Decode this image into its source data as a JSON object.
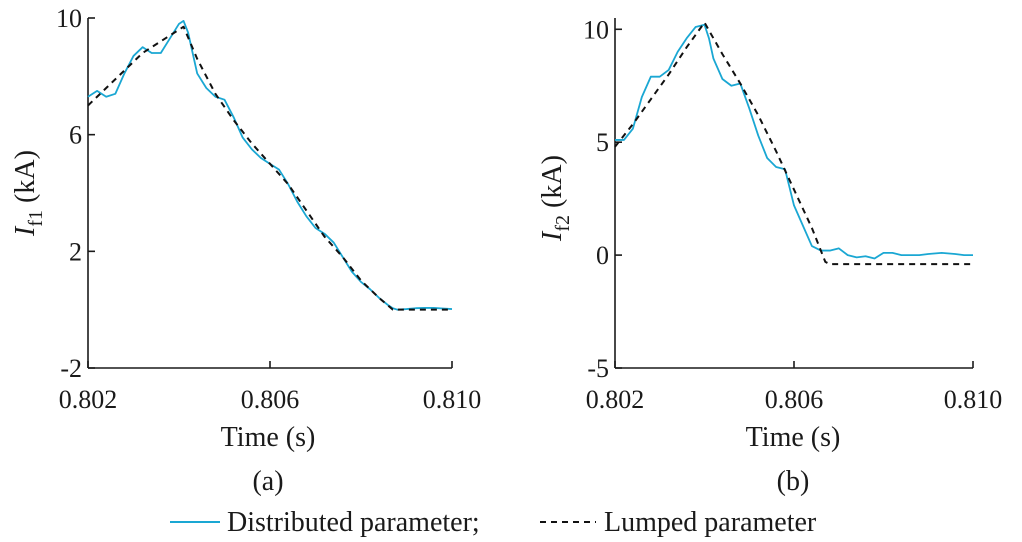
{
  "colors": {
    "distributed": "#1aa7d3",
    "lumped": "#111111",
    "axis": "#1a1a1a"
  },
  "legend": [
    {
      "label": "Distributed parameter;",
      "style": "solid"
    },
    {
      "label": "Lumped parameter",
      "style": "dashed"
    }
  ],
  "chart_data": [
    {
      "type": "line",
      "panel_label": "(a)",
      "xlabel": "Time (s)",
      "ylabel_symbol": "I",
      "ylabel_subscript": "f1",
      "ylabel_unit": " (kA)",
      "xlim": [
        0.802,
        0.81
      ],
      "ylim": [
        -2,
        10
      ],
      "xticks": [
        0.802,
        0.806,
        0.81
      ],
      "xtick_labels": [
        "0.802",
        "0.806",
        "0.810"
      ],
      "yticks": [
        -2,
        2,
        6,
        10
      ],
      "ytick_labels": [
        "-2",
        "2",
        "6",
        "10"
      ],
      "series": [
        {
          "name": "Distributed parameter",
          "style": "solid",
          "x": [
            0.802,
            0.8022,
            0.8024,
            0.8026,
            0.8028,
            0.803,
            0.8032,
            0.8034,
            0.8036,
            0.8038,
            0.804,
            0.8041,
            0.8042,
            0.8043,
            0.8044,
            0.8046,
            0.8048,
            0.805,
            0.8052,
            0.8054,
            0.8056,
            0.8058,
            0.806,
            0.8062,
            0.8064,
            0.8066,
            0.8068,
            0.807,
            0.8072,
            0.8074,
            0.8076,
            0.8078,
            0.808,
            0.8082,
            0.8084,
            0.8086,
            0.8087,
            0.8088,
            0.809,
            0.8092,
            0.8094,
            0.8096,
            0.8098,
            0.81
          ],
          "y": [
            7.3,
            7.5,
            7.3,
            7.4,
            8.1,
            8.7,
            9.0,
            8.8,
            8.8,
            9.3,
            9.8,
            9.9,
            9.5,
            8.8,
            8.1,
            7.6,
            7.3,
            7.2,
            6.6,
            5.9,
            5.5,
            5.2,
            5.0,
            4.8,
            4.3,
            3.7,
            3.2,
            2.8,
            2.6,
            2.3,
            1.8,
            1.3,
            0.95,
            0.7,
            0.4,
            0.15,
            0.05,
            0.0,
            0.02,
            0.05,
            0.06,
            0.06,
            0.04,
            0.02
          ]
        },
        {
          "name": "Lumped parameter",
          "style": "dashed",
          "x": [
            0.802,
            0.8024,
            0.8028,
            0.8032,
            0.8036,
            0.804,
            0.8041,
            0.8044,
            0.8048,
            0.8052,
            0.8056,
            0.806,
            0.8064,
            0.8068,
            0.8072,
            0.8076,
            0.808,
            0.8084,
            0.8087,
            0.8088,
            0.809,
            0.8095,
            0.81
          ],
          "y": [
            7.0,
            7.6,
            8.2,
            8.8,
            9.2,
            9.6,
            9.7,
            8.6,
            7.4,
            6.5,
            5.7,
            5.0,
            4.3,
            3.4,
            2.5,
            1.8,
            1.0,
            0.4,
            0.0,
            0.0,
            0.0,
            0.0,
            0.0
          ]
        }
      ]
    },
    {
      "type": "line",
      "panel_label": "(b)",
      "xlabel": "Time (s)",
      "ylabel_symbol": "I",
      "ylabel_subscript": "f2",
      "ylabel_unit": " (kA)",
      "xlim": [
        0.802,
        0.81
      ],
      "ylim": [
        -5,
        10.5
      ],
      "xticks": [
        0.802,
        0.806,
        0.81
      ],
      "xtick_labels": [
        "0.802",
        "0.806",
        "0.810"
      ],
      "yticks": [
        -5,
        0,
        5,
        10
      ],
      "ytick_labels": [
        "-5",
        "0",
        "5",
        "10"
      ],
      "series": [
        {
          "name": "Distributed parameter",
          "style": "solid",
          "x": [
            0.802,
            0.8022,
            0.8024,
            0.8026,
            0.8028,
            0.803,
            0.8032,
            0.8034,
            0.8036,
            0.8038,
            0.804,
            0.8041,
            0.8042,
            0.8044,
            0.8046,
            0.8048,
            0.805,
            0.8052,
            0.8054,
            0.8056,
            0.8058,
            0.806,
            0.8062,
            0.8064,
            0.8066,
            0.8068,
            0.807,
            0.8072,
            0.8074,
            0.8076,
            0.8078,
            0.808,
            0.8082,
            0.8084,
            0.8086,
            0.8088,
            0.809,
            0.8093,
            0.8096,
            0.8098,
            0.81
          ],
          "y": [
            5.1,
            5.1,
            5.6,
            7.0,
            7.9,
            7.9,
            8.2,
            9.0,
            9.6,
            10.1,
            10.2,
            9.6,
            8.7,
            7.8,
            7.5,
            7.6,
            6.5,
            5.3,
            4.3,
            3.9,
            3.8,
            2.2,
            1.3,
            0.4,
            0.2,
            0.2,
            0.3,
            0.0,
            -0.1,
            -0.05,
            -0.15,
            0.1,
            0.1,
            0.0,
            0.0,
            0.0,
            0.05,
            0.1,
            0.05,
            0.0,
            0.0
          ]
        },
        {
          "name": "Lumped parameter",
          "style": "dashed",
          "x": [
            0.802,
            0.8024,
            0.8028,
            0.8032,
            0.8036,
            0.804,
            0.8044,
            0.8048,
            0.8052,
            0.8056,
            0.806,
            0.8064,
            0.8067,
            0.8068,
            0.807,
            0.8075,
            0.808,
            0.8085,
            0.809,
            0.8095,
            0.81
          ],
          "y": [
            4.8,
            5.8,
            6.9,
            8.0,
            9.2,
            10.3,
            8.9,
            7.6,
            6.2,
            4.6,
            2.9,
            1.2,
            -0.3,
            -0.4,
            -0.4,
            -0.4,
            -0.4,
            -0.4,
            -0.4,
            -0.4,
            -0.4
          ]
        }
      ]
    }
  ]
}
